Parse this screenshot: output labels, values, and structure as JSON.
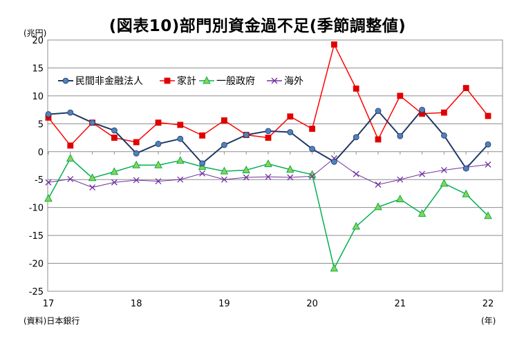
{
  "title": "(図表10)部門別資金過不足(季節調整値)",
  "unit_label": "(兆円)",
  "source_label": "(資料)日本銀行",
  "x_unit_label": "(年)",
  "chart_data": {
    "type": "line",
    "ylim": [
      -25,
      20
    ],
    "yticks": [
      20,
      15,
      10,
      5,
      0,
      -5,
      -10,
      -15,
      -20,
      -25
    ],
    "grid": true,
    "legend_position": "top-left",
    "x": [
      "17Q1",
      "17Q2",
      "17Q3",
      "17Q4",
      "18Q1",
      "18Q2",
      "18Q3",
      "18Q4",
      "19Q1",
      "19Q2",
      "19Q3",
      "19Q4",
      "20Q1",
      "20Q2",
      "20Q3",
      "20Q4",
      "21Q1",
      "21Q2",
      "21Q3",
      "21Q4",
      "22Q1"
    ],
    "x_tick_labels": [
      {
        "index": 0,
        "label": "17"
      },
      {
        "index": 4,
        "label": "18"
      },
      {
        "index": 8,
        "label": "19"
      },
      {
        "index": 12,
        "label": "20"
      },
      {
        "index": 16,
        "label": "21"
      },
      {
        "index": 20,
        "label": "22"
      }
    ],
    "series": [
      {
        "name": "民間非金融法人",
        "color": "#1f3864",
        "marker": "circle",
        "marker_color": "#4f81bd",
        "values": [
          6.7,
          7.0,
          5.2,
          3.8,
          -0.3,
          1.4,
          2.3,
          -2.1,
          1.2,
          3.0,
          3.7,
          3.5,
          0.5,
          -1.8,
          2.6,
          7.3,
          2.8,
          7.5,
          2.9,
          -3.0,
          1.3
        ]
      },
      {
        "name": "家計",
        "color": "#ff0000",
        "marker": "square",
        "marker_color": "#e00000",
        "values": [
          6.1,
          1.1,
          5.2,
          2.5,
          1.7,
          5.2,
          4.8,
          2.9,
          5.6,
          3.0,
          2.5,
          6.3,
          4.1,
          19.2,
          11.3,
          2.2,
          10.0,
          6.8,
          7.0,
          11.4,
          6.4
        ]
      },
      {
        "name": "一般政府",
        "color": "#00b050",
        "marker": "triangle",
        "marker_color": "#92d050",
        "values": [
          -8.4,
          -1.2,
          -4.7,
          -3.6,
          -2.4,
          -2.4,
          -1.6,
          -2.7,
          -3.5,
          -3.3,
          -2.2,
          -3.2,
          -4.1,
          -20.9,
          -13.4,
          -9.9,
          -8.5,
          -11.1,
          -5.7,
          -7.6,
          -11.5
        ]
      },
      {
        "name": "海外",
        "color": "#7030a0",
        "marker": "cross",
        "marker_color": "#7030a0",
        "values": [
          -5.5,
          -4.9,
          -6.4,
          -5.5,
          -5.1,
          -5.3,
          -5.0,
          -3.9,
          -5.0,
          -4.6,
          -4.5,
          -4.6,
          -4.4,
          -1.2,
          -4.0,
          -5.9,
          -5.0,
          -4.0,
          -3.3,
          -2.8,
          -2.3
        ]
      }
    ]
  }
}
